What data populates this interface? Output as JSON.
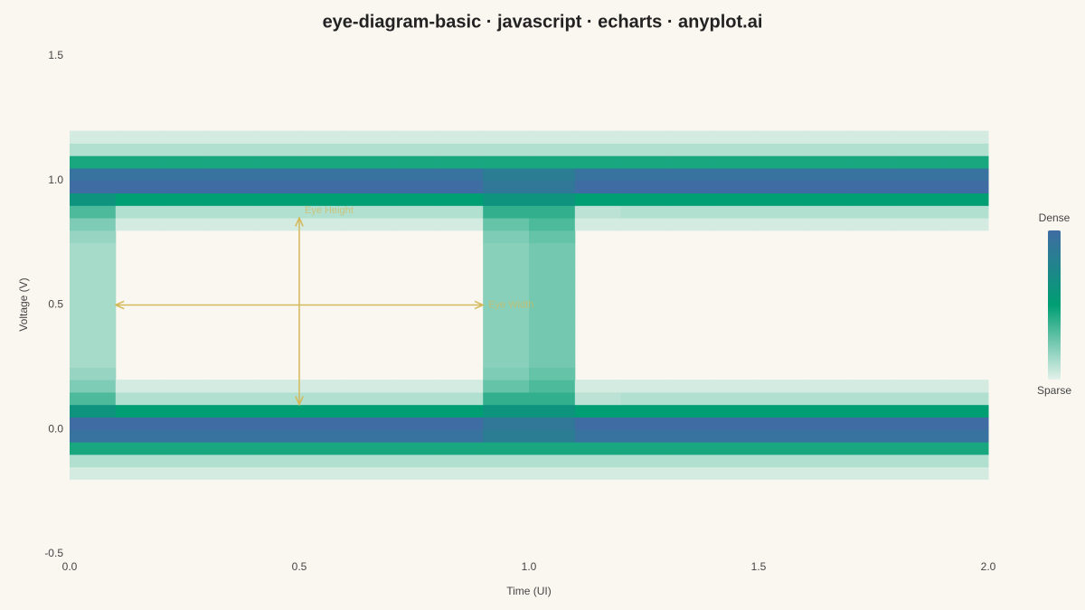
{
  "chart_data": {
    "type": "heatmap",
    "title": "eye-diagram-basic · javascript · echarts · anyplot.ai",
    "x_label": "Time (UI)",
    "y_label": "Voltage (V)",
    "xlim": [
      0,
      2
    ],
    "ylim": [
      -0.5,
      1.5
    ],
    "xticks": [
      {
        "value": 0,
        "label": "0.0"
      },
      0.5,
      {
        "value": 1,
        "label": "1.0"
      },
      1.5,
      {
        "value": 2,
        "label": "2.0"
      }
    ],
    "yticks": [
      -0.5,
      {
        "value": 0,
        "label": "0.0"
      },
      0.5,
      {
        "value": 1,
        "label": "1.0"
      },
      1.5
    ],
    "grid": false,
    "xbins": [
      0,
      0.1,
      0.2,
      0.3,
      0.4,
      0.5,
      0.6,
      0.7,
      0.8,
      0.9,
      1.0,
      1.1,
      1.2,
      1.3,
      1.4,
      1.5,
      1.6,
      1.7,
      1.8,
      1.9,
      2.0
    ],
    "ybins": [
      -0.2,
      -0.15,
      -0.1,
      -0.05,
      0,
      0.05,
      0.1,
      0.15,
      0.2,
      0.25,
      0.3,
      0.35,
      0.4,
      0.45,
      0.5,
      0.55,
      0.6,
      0.65,
      0.7,
      0.75,
      0.8,
      0.85,
      0.9,
      0.95,
      1.0,
      1.05,
      1.1,
      1.15,
      1.2
    ],
    "density": [
      [
        3,
        3,
        3,
        3,
        3,
        3,
        3,
        3,
        3,
        3,
        3,
        3,
        3,
        3,
        3,
        3,
        3,
        3,
        3,
        3
      ],
      [
        10,
        10,
        10,
        10,
        10,
        10,
        10,
        10,
        10,
        10,
        10,
        10,
        10,
        10,
        10,
        10,
        10,
        10,
        10,
        10
      ],
      [
        40,
        40,
        40,
        40,
        40,
        40,
        40,
        40,
        40,
        40,
        40,
        40,
        40,
        40,
        40,
        40,
        40,
        40,
        40,
        40
      ],
      [
        85,
        85,
        85,
        85,
        85,
        85,
        85,
        85,
        85,
        75,
        75,
        85,
        85,
        85,
        85,
        85,
        85,
        85,
        85,
        85
      ],
      [
        90,
        90,
        90,
        90,
        90,
        90,
        90,
        90,
        90,
        80,
        80,
        90,
        90,
        90,
        90,
        90,
        90,
        90,
        90,
        90
      ],
      [
        55,
        45,
        45,
        45,
        45,
        45,
        45,
        45,
        45,
        55,
        55,
        45,
        45,
        45,
        45,
        45,
        45,
        45,
        45,
        45
      ],
      [
        30,
        10,
        10,
        10,
        10,
        10,
        10,
        10,
        10,
        35,
        35,
        8,
        10,
        10,
        10,
        10,
        10,
        10,
        10,
        10
      ],
      [
        20,
        3,
        3,
        3,
        3,
        3,
        3,
        3,
        3,
        25,
        30,
        3,
        3,
        3,
        3,
        3,
        3,
        3,
        3,
        3
      ],
      [
        15,
        0,
        0,
        0,
        0,
        0,
        0,
        0,
        0,
        20,
        25,
        0,
        0,
        0,
        0,
        0,
        0,
        0,
        0,
        0
      ],
      [
        12,
        0,
        0,
        0,
        0,
        0,
        0,
        0,
        0,
        18,
        22,
        0,
        0,
        0,
        0,
        0,
        0,
        0,
        0,
        0
      ],
      [
        12,
        0,
        0,
        0,
        0,
        0,
        0,
        0,
        0,
        18,
        22,
        0,
        0,
        0,
        0,
        0,
        0,
        0,
        0,
        0
      ],
      [
        12,
        0,
        0,
        0,
        0,
        0,
        0,
        0,
        0,
        18,
        22,
        0,
        0,
        0,
        0,
        0,
        0,
        0,
        0,
        0
      ],
      [
        12,
        0,
        0,
        0,
        0,
        0,
        0,
        0,
        0,
        18,
        22,
        0,
        0,
        0,
        0,
        0,
        0,
        0,
        0,
        0
      ],
      [
        12,
        0,
        0,
        0,
        0,
        0,
        0,
        0,
        0,
        18,
        22,
        0,
        0,
        0,
        0,
        0,
        0,
        0,
        0,
        0
      ],
      [
        12,
        0,
        0,
        0,
        0,
        0,
        0,
        0,
        0,
        18,
        22,
        0,
        0,
        0,
        0,
        0,
        0,
        0,
        0,
        0
      ],
      [
        12,
        0,
        0,
        0,
        0,
        0,
        0,
        0,
        0,
        18,
        22,
        0,
        0,
        0,
        0,
        0,
        0,
        0,
        0,
        0
      ],
      [
        12,
        0,
        0,
        0,
        0,
        0,
        0,
        0,
        0,
        18,
        22,
        0,
        0,
        0,
        0,
        0,
        0,
        0,
        0,
        0
      ],
      [
        12,
        0,
        0,
        0,
        0,
        0,
        0,
        0,
        0,
        18,
        22,
        0,
        0,
        0,
        0,
        0,
        0,
        0,
        0,
        0
      ],
      [
        12,
        0,
        0,
        0,
        0,
        0,
        0,
        0,
        0,
        18,
        22,
        0,
        0,
        0,
        0,
        0,
        0,
        0,
        0,
        0
      ],
      [
        15,
        0,
        0,
        0,
        0,
        0,
        0,
        0,
        0,
        20,
        25,
        0,
        0,
        0,
        0,
        0,
        0,
        0,
        0,
        0
      ],
      [
        20,
        3,
        3,
        3,
        3,
        3,
        3,
        3,
        3,
        25,
        30,
        3,
        3,
        3,
        3,
        3,
        3,
        3,
        3,
        3
      ],
      [
        30,
        10,
        10,
        10,
        10,
        10,
        10,
        10,
        10,
        35,
        35,
        8,
        10,
        10,
        10,
        10,
        10,
        10,
        10,
        10
      ],
      [
        55,
        45,
        45,
        45,
        45,
        45,
        45,
        45,
        45,
        55,
        55,
        45,
        45,
        45,
        45,
        45,
        45,
        45,
        45,
        45
      ],
      [
        90,
        90,
        90,
        90,
        90,
        90,
        90,
        90,
        90,
        80,
        80,
        90,
        90,
        90,
        90,
        90,
        90,
        90,
        90,
        90
      ],
      [
        85,
        85,
        85,
        85,
        85,
        85,
        85,
        85,
        85,
        75,
        75,
        85,
        85,
        85,
        85,
        85,
        85,
        85,
        85,
        85
      ],
      [
        40,
        40,
        40,
        40,
        40,
        40,
        40,
        40,
        40,
        40,
        40,
        40,
        40,
        40,
        40,
        40,
        40,
        40,
        40,
        40
      ],
      [
        10,
        10,
        10,
        10,
        10,
        10,
        10,
        10,
        10,
        10,
        10,
        10,
        10,
        10,
        10,
        10,
        10,
        10,
        10,
        10
      ],
      [
        3,
        3,
        3,
        3,
        3,
        3,
        3,
        3,
        3,
        3,
        3,
        3,
        3,
        3,
        3,
        3,
        3,
        3,
        3,
        3
      ]
    ],
    "visual_map": {
      "range": [
        0,
        90
      ],
      "colors": [
        "#e3f1ea",
        "#009e73",
        "#3f6ca3"
      ],
      "text_high": "Dense",
      "text_low": "Sparse"
    },
    "annotations": [
      {
        "text": "Eye Width",
        "x1": 0.1,
        "y1": 0.5,
        "x2": 0.9,
        "y2": 0.5,
        "color": "#d4b95a"
      },
      {
        "text": "Eye Height",
        "x1": 0.5,
        "y1": 0.1,
        "x2": 0.5,
        "y2": 0.85,
        "color": "#d4b95a"
      }
    ]
  }
}
